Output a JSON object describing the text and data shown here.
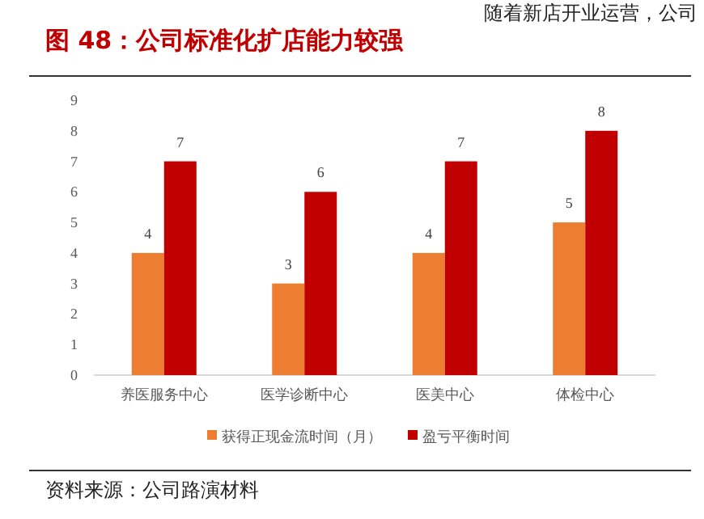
{
  "chart_data": {
    "type": "bar",
    "title": "图 48：公司标准化扩店能力较强",
    "categories": [
      "养医服务中心",
      "医学诊断中心",
      "医美中心",
      "体检中心"
    ],
    "series": [
      {
        "name": "获得正现金流时间（月）",
        "color": "#ed7d31",
        "values": [
          4,
          3,
          4,
          5
        ]
      },
      {
        "name": "盈亏平衡时间",
        "color": "#c00000",
        "values": [
          7,
          6,
          7,
          8
        ]
      }
    ],
    "ylim": [
      0,
      9
    ],
    "yticks": [
      0,
      1,
      2,
      3,
      4,
      5,
      6,
      7,
      8,
      9
    ],
    "data_labels": true,
    "legend": "bottom",
    "grid": false,
    "annotations": [
      "随着新店开业运营，公司",
      "资料来源：公司路演材料"
    ]
  }
}
